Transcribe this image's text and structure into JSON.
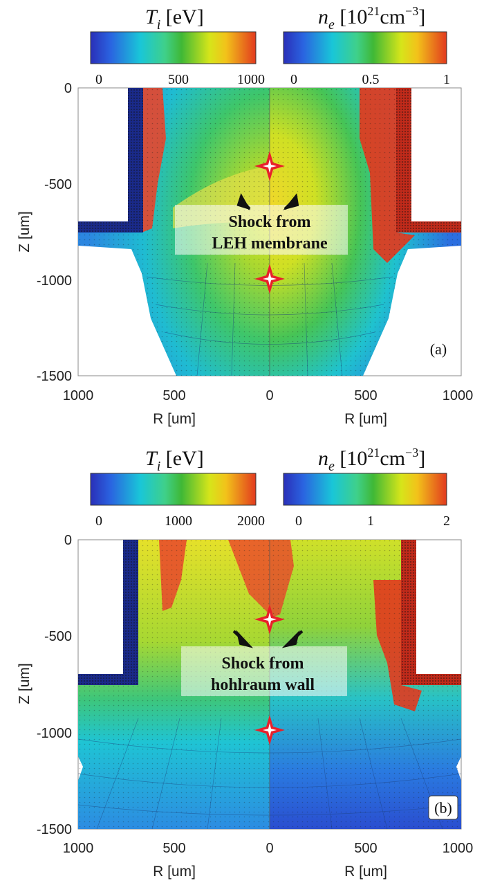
{
  "chart_data": [
    {
      "panel": "(a)",
      "type": "heatmap",
      "left_colorbar": {
        "label_main": "T",
        "label_sub": "i",
        "label_unit": " [eV]",
        "ticks": [
          "0",
          "500",
          "1000"
        ],
        "range": [
          0,
          1000
        ]
      },
      "right_colorbar": {
        "label_main": "n",
        "label_sub": "e",
        "label_unit_pre": " [10",
        "label_sup": "21",
        "label_unit_mid": "cm",
        "label_sup2": "−3",
        "label_unit_post": "]",
        "ticks": [
          "0",
          "0.5",
          "1"
        ],
        "range": [
          0,
          1
        ]
      },
      "y_ticks": [
        "0",
        "-500",
        "-1000",
        "-1500"
      ],
      "ylim": [
        -1500,
        0
      ],
      "x_ticks_left": [
        "1000",
        "500",
        "0"
      ],
      "x_ticks_right": [
        "500",
        "1000"
      ],
      "xlabel_left": "R [um]",
      "xlabel_right": "R [um]",
      "ylabel": "Z [um]",
      "annotation_line1": "Shock from",
      "annotation_line2": "LEH membrane",
      "markers_z": [
        -420,
        -1000
      ],
      "corner_label": "(a)"
    },
    {
      "panel": "(b)",
      "type": "heatmap",
      "left_colorbar": {
        "label_main": "T",
        "label_sub": "i",
        "label_unit": " [eV]",
        "ticks": [
          "0",
          "1000",
          "2000"
        ],
        "range": [
          0,
          2000
        ]
      },
      "right_colorbar": {
        "label_main": "n",
        "label_sub": "e",
        "label_unit_pre": " [10",
        "label_sup": "21",
        "label_unit_mid": "cm",
        "label_sup2": "−3",
        "label_unit_post": "]",
        "ticks": [
          "0",
          "1",
          "2"
        ],
        "range": [
          0,
          2
        ]
      },
      "y_ticks": [
        "0",
        "-500",
        "-1000",
        "-1500"
      ],
      "ylim": [
        -1500,
        0
      ],
      "x_ticks_left": [
        "1000",
        "500",
        "0"
      ],
      "x_ticks_right": [
        "500",
        "1000"
      ],
      "xlabel_left": "R [um]",
      "xlabel_right": "R [um]",
      "ylabel": "Z [um]",
      "annotation_line1": "Shock from",
      "annotation_line2": "hohlraum wall",
      "markers_z": [
        -400,
        -1000
      ],
      "corner_label": "(b)"
    }
  ]
}
